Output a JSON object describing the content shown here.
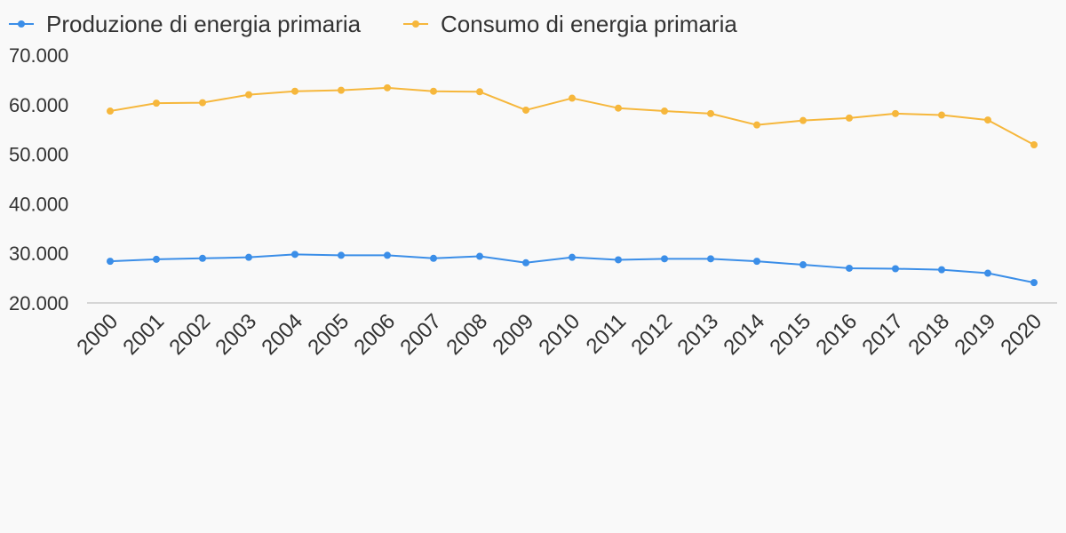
{
  "chart_data": {
    "type": "line",
    "title": "",
    "xlabel": "",
    "ylabel": "",
    "ylim": [
      20000,
      70000
    ],
    "yticks": [
      20000,
      30000,
      40000,
      50000,
      60000,
      70000
    ],
    "ytick_labels": [
      "20.000",
      "30.000",
      "40.000",
      "50.000",
      "60.000",
      "70.000"
    ],
    "grid": false,
    "legend_position": "top-left",
    "categories": [
      "2000",
      "2001",
      "2002",
      "2003",
      "2004",
      "2005",
      "2006",
      "2007",
      "2008",
      "2009",
      "2010",
      "2011",
      "2012",
      "2013",
      "2014",
      "2015",
      "2016",
      "2017",
      "2018",
      "2019",
      "2020"
    ],
    "series": [
      {
        "name": "Produzione di energia primaria",
        "color": "#3b8ee8",
        "values": [
          28400,
          28800,
          29000,
          29200,
          29800,
          29600,
          29600,
          29000,
          29400,
          28100,
          29200,
          28700,
          28900,
          28900,
          28400,
          27700,
          27000,
          26900,
          26700,
          26000,
          24100
        ]
      },
      {
        "name": "Consumo di energia primaria",
        "color": "#f6b73c",
        "values": [
          58700,
          60300,
          60400,
          62000,
          62700,
          62900,
          63400,
          62700,
          62600,
          58900,
          61300,
          59300,
          58700,
          58200,
          55900,
          56800,
          57300,
          58200,
          57900,
          56900,
          51900
        ]
      }
    ]
  }
}
